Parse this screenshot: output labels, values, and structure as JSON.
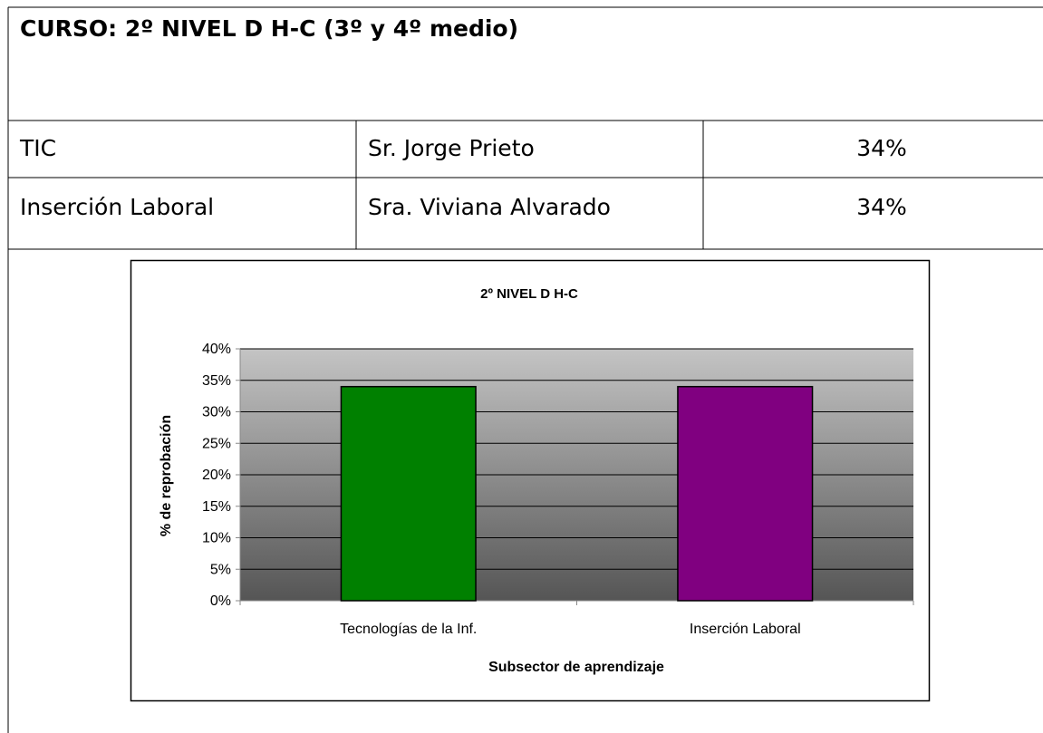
{
  "header": {
    "title": "CURSO: 2º NIVEL D H-C (3º y 4º medio)"
  },
  "table": {
    "rows": [
      [
        "TIC",
        "Sr. Jorge Prieto",
        "34%"
      ],
      [
        "Inserción Laboral",
        "Sra. Viviana Alvarado",
        "34%"
      ]
    ]
  },
  "chart_data": {
    "type": "bar",
    "title": "2º NIVEL D H-C",
    "x_label": "Subsector de aprendizaje",
    "y_label": "% de reprobación",
    "categories": [
      "Tecnologías de la Inf.",
      "Inserción Laboral"
    ],
    "values": [
      34,
      34
    ],
    "colors": [
      "#008000",
      "#800080"
    ],
    "ylim": [
      0,
      40
    ],
    "yticks": [
      {
        "value": 0,
        "label": "0%"
      },
      {
        "value": 5,
        "label": "5%"
      },
      {
        "value": 10,
        "label": "10%"
      },
      {
        "value": 15,
        "label": "15%"
      },
      {
        "value": 20,
        "label": "20%"
      },
      {
        "value": 25,
        "label": "25%"
      },
      {
        "value": 30,
        "label": "30%"
      },
      {
        "value": 35,
        "label": "35%"
      },
      {
        "value": 40,
        "label": "40%"
      }
    ],
    "grid": true
  }
}
